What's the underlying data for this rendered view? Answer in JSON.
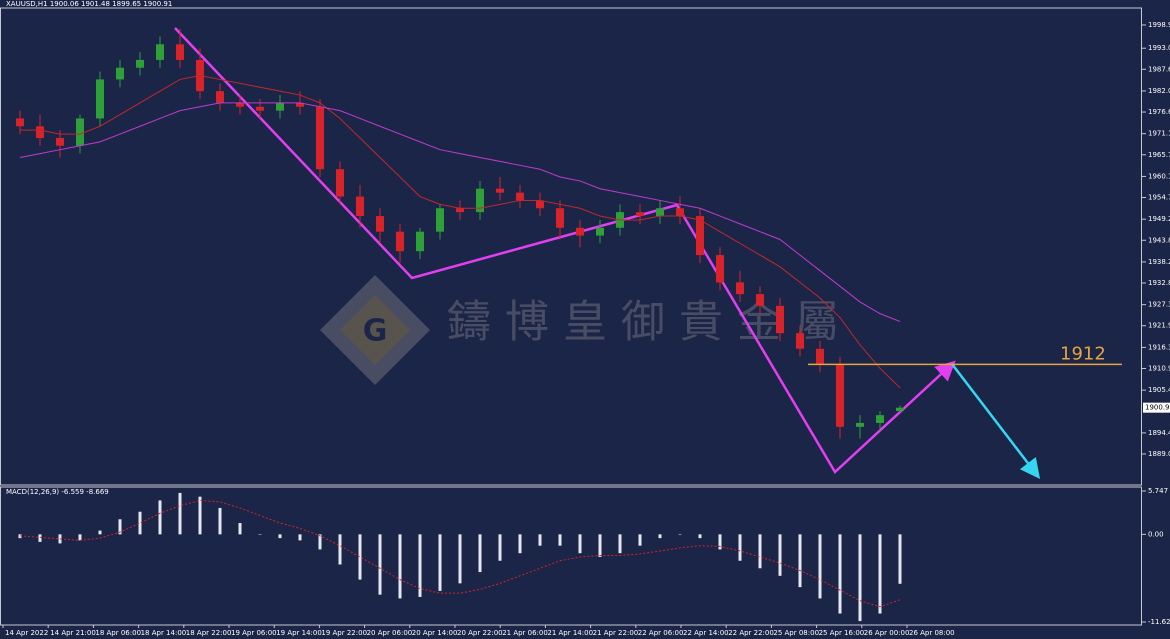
{
  "chart_data": {
    "type": "candlestick",
    "title": "XAUUSD,H1  1900.06 1901.48 1899.65 1900.91",
    "watermark": "鑄博皇御貴金屬",
    "level": 1912,
    "level_color": "#e8a33c",
    "price_tag": 1900.91,
    "up_color": "#2f9f3a",
    "down_color": "#d8232a",
    "ylim": [
      1881.1,
      2003.3
    ],
    "yticks": [
      {
        "value": 1998.95,
        "label": "1998.95"
      },
      {
        "value": 1993.0,
        "label": "1993.00"
      },
      {
        "value": 1987.6,
        "label": "1987.60"
      },
      {
        "value": 1982.05,
        "label": "1982.05"
      },
      {
        "value": 1976.65,
        "label": "1976.65"
      },
      {
        "value": 1971.1,
        "label": "1971.10"
      },
      {
        "value": 1965.7,
        "label": "1965.70"
      },
      {
        "value": 1960.15,
        "label": "1960.15"
      },
      {
        "value": 1954.75,
        "label": "1954.75"
      },
      {
        "value": 1949.2,
        "label": "1949.20"
      },
      {
        "value": 1943.8,
        "label": "1943.80"
      },
      {
        "value": 1938.25,
        "label": "1938.25"
      },
      {
        "value": 1932.85,
        "label": "1932.85"
      },
      {
        "value": 1927.3,
        "label": "1927.30"
      },
      {
        "value": 1921.9,
        "label": "1921.90"
      },
      {
        "value": 1916.35,
        "label": "1916.35"
      },
      {
        "value": 1910.95,
        "label": "1910.95"
      },
      {
        "value": 1905.4,
        "label": "1905.40"
      },
      {
        "value": 1894.45,
        "label": "1894.45"
      },
      {
        "value": 1889.05,
        "label": "1889.05"
      }
    ],
    "xlabels": [
      "14 Apr 2022",
      "14 Apr 21:00",
      "18 Apr 06:00",
      "18 Apr 14:00",
      "18 Apr 22:00",
      "19 Apr 06:00",
      "19 Apr 14:00",
      "19 Apr 22:00",
      "20 Apr 06:00",
      "20 Apr 14:00",
      "20 Apr 22:00",
      "21 Apr 06:00",
      "21 Apr 14:00",
      "21 Apr 22:00",
      "22 Apr 06:00",
      "22 Apr 14:00",
      "22 Apr 22:00",
      "25 Apr 08:00",
      "25 Apr 16:00",
      "26 Apr 00:00",
      "26 Apr 08:00"
    ],
    "open": [
      1975,
      1973,
      1970,
      1968,
      1975,
      1985,
      1988,
      1990,
      1994,
      1990,
      1982,
      1979,
      1978,
      1977,
      1979,
      1978,
      1962,
      1955,
      1950,
      1946,
      1941,
      1946,
      1952,
      1951,
      1957,
      1956,
      1954,
      1952,
      1947,
      1945,
      1947,
      1951,
      1950,
      1952,
      1950,
      1940,
      1933,
      1930,
      1927,
      1920,
      1916,
      1912,
      1896,
      1897,
      1900.06
    ],
    "high": [
      1977,
      1976,
      1972,
      1976,
      1987,
      1990,
      1992,
      1996,
      1998,
      1993,
      1984,
      1981,
      1980,
      1981,
      1982,
      1980,
      1964,
      1958,
      1952,
      1948,
      1947,
      1953,
      1954,
      1959,
      1960,
      1958,
      1956,
      1954,
      1949,
      1949,
      1953,
      1953,
      1954,
      1955,
      1952,
      1942,
      1936,
      1932,
      1929,
      1922,
      1918,
      1914,
      1899,
      1900,
      1901.48
    ],
    "low": [
      1971,
      1968,
      1965,
      1966,
      1973,
      1983,
      1986,
      1988,
      1988,
      1980,
      1977,
      1976,
      1975,
      1975,
      1976,
      1960,
      1953,
      1947,
      1943,
      1938,
      1939,
      1944,
      1949,
      1949,
      1954,
      1952,
      1950,
      1944,
      1942,
      1943,
      1945,
      1948,
      1948,
      1948,
      1938,
      1931,
      1928,
      1925,
      1918,
      1914,
      1910,
      1893,
      1893,
      1895,
      1899.65
    ],
    "close": [
      1973,
      1970,
      1968,
      1975,
      1985,
      1988,
      1990,
      1994,
      1990,
      1982,
      1979,
      1978,
      1977,
      1979,
      1978,
      1962,
      1955,
      1950,
      1946,
      1941,
      1946,
      1952,
      1951,
      1957,
      1956,
      1954,
      1952,
      1947,
      1945,
      1947,
      1951,
      1950,
      1952,
      1950,
      1940,
      1933,
      1930,
      1927,
      1920,
      1916,
      1912,
      1896,
      1897,
      1899,
      1900.91
    ],
    "overlays": [
      {
        "color": "#c0282c",
        "values": [
          1972,
          1972,
          1971,
          1971,
          1973,
          1976,
          1979,
          1982,
          1985,
          1986,
          1985,
          1984,
          1983,
          1982,
          1981,
          1979,
          1975,
          1970,
          1965,
          1960,
          1955,
          1953,
          1952,
          1952,
          1953,
          1954,
          1954,
          1953,
          1952,
          1950,
          1949,
          1949,
          1950,
          1950,
          1949,
          1946,
          1943,
          1940,
          1937,
          1933,
          1929,
          1924,
          1917,
          1911,
          1906
        ]
      },
      {
        "color": "#c03bd0",
        "values": [
          1965,
          1966,
          1967,
          1968,
          1969,
          1971,
          1973,
          1975,
          1977,
          1978,
          1979,
          1979,
          1979,
          1979,
          1979,
          1978,
          1977,
          1975,
          1973,
          1971,
          1969,
          1967,
          1966,
          1965,
          1964,
          1963,
          1962,
          1960,
          1959,
          1957,
          1956,
          1955,
          1954,
          1953,
          1952,
          1950,
          1948,
          1946,
          1944,
          1940,
          1936,
          1932,
          1928,
          1925,
          1923
        ]
      }
    ],
    "macd": {
      "title": "MACD(12,26,9) -6.559 -8.669",
      "ylim": [
        -12.02,
        6.28
      ],
      "yticks": [
        5.747,
        {
          "value": 0,
          "label": "0.00"
        },
        -11.625
      ],
      "hist_color": "#e6e6ee",
      "signal_color": "#d8232a",
      "values": [
        -0.5,
        -1,
        -1.2,
        -0.8,
        0.5,
        2,
        3,
        4.5,
        5.5,
        5,
        3.5,
        1.5,
        0,
        -0.5,
        -0.8,
        -2,
        -4,
        -6,
        -8,
        -8.5,
        -8.3,
        -7.5,
        -6.5,
        -5,
        -3.5,
        -2.5,
        -1.5,
        -1.5,
        -2.5,
        -3,
        -2.5,
        -1.5,
        -0.5,
        0,
        -0.5,
        -2,
        -3.5,
        -4.5,
        -5.5,
        -7,
        -8.5,
        -10.5,
        -11.5,
        -10.5,
        -6.559
      ],
      "signal": [
        -0.2,
        -0.4,
        -0.6,
        -0.8,
        -0.5,
        0.3,
        1.5,
        2.8,
        3.8,
        4.5,
        4.3,
        3.5,
        2.5,
        1.5,
        0.8,
        -0.2,
        -1.5,
        -3,
        -4.5,
        -6,
        -7.2,
        -7.8,
        -7.8,
        -7.3,
        -6.5,
        -5.5,
        -4.5,
        -3.5,
        -3,
        -2.8,
        -2.8,
        -2.6,
        -2.2,
        -1.8,
        -1.5,
        -1.6,
        -2.2,
        -3,
        -3.8,
        -4.8,
        -6,
        -7.4,
        -8.8,
        -9.6,
        -8.669
      ]
    }
  }
}
